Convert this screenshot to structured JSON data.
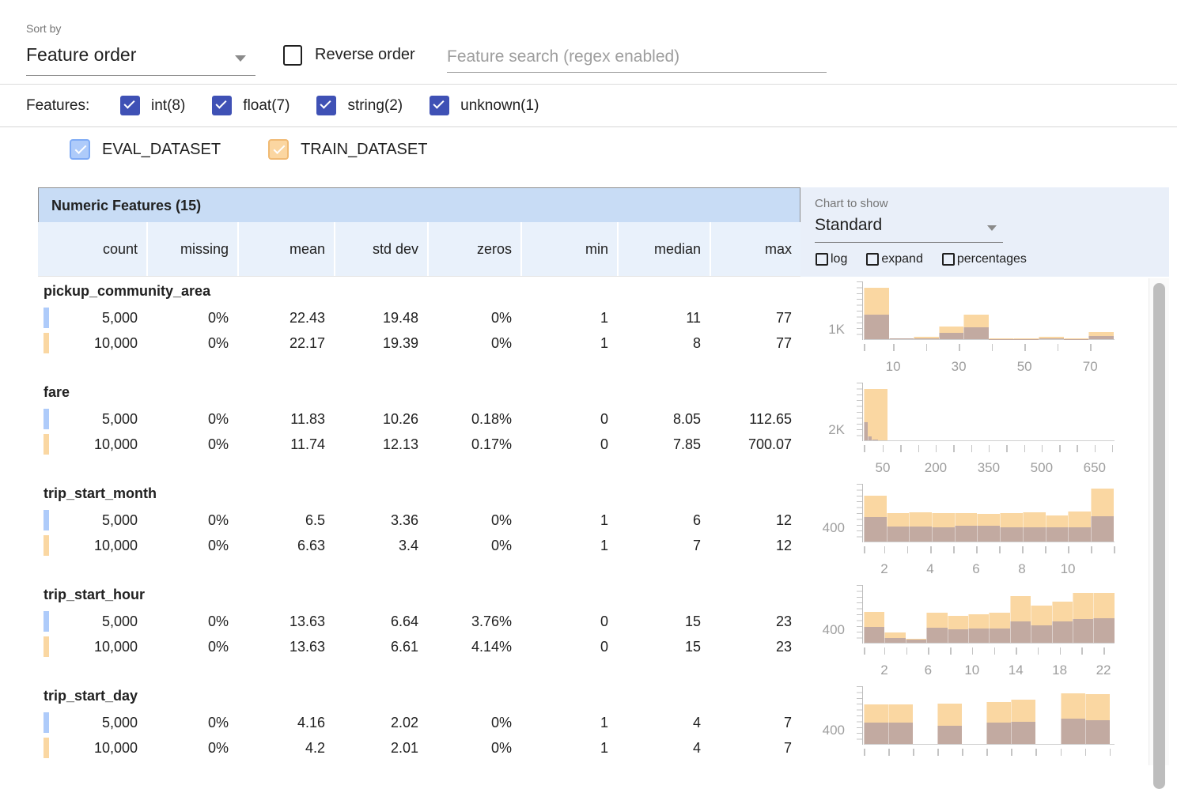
{
  "colors": {
    "accent_indigo": "#3f51b5",
    "table_title_bg": "#c8dcf5",
    "table_header_bg": "#e9f1fb",
    "chart_panel_bg": "#e9eff9",
    "train_bar": "#fad7a2",
    "overlap_bar": "#c2aaa1",
    "eval_swatch": "#aecbfa",
    "train_swatch": "#fad7a2"
  },
  "sort": {
    "label": "Sort by",
    "value": "Feature order"
  },
  "reverse": {
    "label": "Reverse order",
    "checked": false
  },
  "search": {
    "placeholder": "Feature search (regex enabled)",
    "value": ""
  },
  "features_filter": {
    "label": "Features:",
    "items": [
      {
        "label": "int(8)",
        "checked": true
      },
      {
        "label": "float(7)",
        "checked": true
      },
      {
        "label": "string(2)",
        "checked": true
      },
      {
        "label": "unknown(1)",
        "checked": true
      }
    ]
  },
  "datasets": [
    {
      "name": "EVAL_DATASET",
      "fill": "#aecbfa",
      "border": "#7fabf5",
      "checked": true
    },
    {
      "name": "TRAIN_DATASET",
      "fill": "#fbd6a1",
      "border": "#f0ba74",
      "checked": true
    }
  ],
  "table": {
    "title": "Numeric Features (15)",
    "columns": [
      "count",
      "missing",
      "mean",
      "std dev",
      "zeros",
      "min",
      "median",
      "max"
    ],
    "rows": [
      {
        "feature": "pickup_community_area",
        "eval": [
          "5,000",
          "0%",
          "22.43",
          "19.48",
          "0%",
          "1",
          "11",
          "77"
        ],
        "train": [
          "10,000",
          "0%",
          "22.17",
          "19.39",
          "0%",
          "1",
          "8",
          "77"
        ]
      },
      {
        "feature": "fare",
        "eval": [
          "5,000",
          "0%",
          "11.83",
          "10.26",
          "0.18%",
          "0",
          "8.05",
          "112.65"
        ],
        "train": [
          "10,000",
          "0%",
          "11.74",
          "12.13",
          "0.17%",
          "0",
          "7.85",
          "700.07"
        ]
      },
      {
        "feature": "trip_start_month",
        "eval": [
          "5,000",
          "0%",
          "6.5",
          "3.36",
          "0%",
          "1",
          "6",
          "12"
        ],
        "train": [
          "10,000",
          "0%",
          "6.63",
          "3.4",
          "0%",
          "1",
          "7",
          "12"
        ]
      },
      {
        "feature": "trip_start_hour",
        "eval": [
          "5,000",
          "0%",
          "13.63",
          "6.64",
          "3.76%",
          "0",
          "15",
          "23"
        ],
        "train": [
          "10,000",
          "0%",
          "13.63",
          "6.61",
          "4.14%",
          "0",
          "15",
          "23"
        ]
      },
      {
        "feature": "trip_start_day",
        "eval": [
          "5,000",
          "0%",
          "4.16",
          "2.02",
          "0%",
          "1",
          "4",
          "7"
        ],
        "train": [
          "10,000",
          "0%",
          "4.2",
          "2.01",
          "0%",
          "1",
          "4",
          "7"
        ]
      }
    ]
  },
  "chart_panel": {
    "label": "Chart to show",
    "value": "Standard",
    "toggles": [
      {
        "label": "log",
        "checked": false
      },
      {
        "label": "expand",
        "checked": false
      },
      {
        "label": "percentages",
        "checked": false
      }
    ]
  },
  "chart_data": [
    {
      "type": "histogram",
      "feature": "pickup_community_area",
      "series_names": [
        "TRAIN_DATASET",
        "EVAL_DATASET"
      ],
      "y_label": "1K",
      "y_label_frac": 0.18,
      "x_range": [
        1,
        77
      ],
      "x_ticks": [
        {
          "pos": 0.0,
          "label": ""
        },
        {
          "pos": 0.117,
          "label": "10"
        },
        {
          "pos": 0.248,
          "label": ""
        },
        {
          "pos": 0.379,
          "label": "30"
        },
        {
          "pos": 0.51,
          "label": ""
        },
        {
          "pos": 0.641,
          "label": "50"
        },
        {
          "pos": 0.772,
          "label": ""
        },
        {
          "pos": 0.903,
          "label": "70"
        }
      ],
      "bars": [
        {
          "x": 0.0,
          "w": 0.0996,
          "train": 0.88,
          "eval": 0.42
        },
        {
          "x": 0.0996,
          "w": 0.0996,
          "train": 0.015,
          "eval": 0.008
        },
        {
          "x": 0.1992,
          "w": 0.0996,
          "train": 0.04,
          "eval": 0.012
        },
        {
          "x": 0.2988,
          "w": 0.0996,
          "train": 0.22,
          "eval": 0.11
        },
        {
          "x": 0.3984,
          "w": 0.0996,
          "train": 0.42,
          "eval": 0.2
        },
        {
          "x": 0.498,
          "w": 0.0996,
          "train": 0.012,
          "eval": 0.006
        },
        {
          "x": 0.5976,
          "w": 0.0996,
          "train": 0.012,
          "eval": 0.006
        },
        {
          "x": 0.6972,
          "w": 0.0996,
          "train": 0.04,
          "eval": 0.012
        },
        {
          "x": 0.7968,
          "w": 0.0996,
          "train": 0.015,
          "eval": 0.006
        },
        {
          "x": 0.8964,
          "w": 0.0996,
          "train": 0.12,
          "eval": 0.05
        }
      ]
    },
    {
      "type": "histogram",
      "feature": "fare",
      "series_names": [
        "TRAIN_DATASET",
        "EVAL_DATASET"
      ],
      "y_label": "2K",
      "y_label_frac": 0.19,
      "x_range": [
        0,
        700
      ],
      "x_ticks": [
        {
          "pos": 0.0,
          "label": ""
        },
        {
          "pos": 0.0757,
          "label": "50"
        },
        {
          "pos": 0.1461,
          "label": ""
        },
        {
          "pos": 0.2165,
          "label": ""
        },
        {
          "pos": 0.2869,
          "label": "200"
        },
        {
          "pos": 0.3573,
          "label": ""
        },
        {
          "pos": 0.4277,
          "label": ""
        },
        {
          "pos": 0.4981,
          "label": "350"
        },
        {
          "pos": 0.5685,
          "label": ""
        },
        {
          "pos": 0.6389,
          "label": ""
        },
        {
          "pos": 0.7093,
          "label": "500"
        },
        {
          "pos": 0.7797,
          "label": ""
        },
        {
          "pos": 0.8501,
          "label": ""
        },
        {
          "pos": 0.9205,
          "label": "650"
        },
        {
          "pos": 0.99,
          "label": ""
        }
      ],
      "bars": [
        {
          "x": 0.0,
          "w": 0.095,
          "train": 0.875,
          "eval": 0
        },
        {
          "x": 0.0,
          "w": 0.016,
          "train": 0,
          "eval": 0.31
        },
        {
          "x": 0.016,
          "w": 0.016,
          "train": 0,
          "eval": 0.07
        },
        {
          "x": 0.032,
          "w": 0.026,
          "train": 0,
          "eval": 0.02
        }
      ]
    },
    {
      "type": "histogram",
      "feature": "trip_start_month",
      "series_names": [
        "TRAIN_DATASET",
        "EVAL_DATASET"
      ],
      "y_label": "400",
      "y_label_frac": 0.24,
      "x_range": [
        1,
        12
      ],
      "x_ticks": [
        {
          "pos": 0.0,
          "label": ""
        },
        {
          "pos": 0.082,
          "label": "2"
        },
        {
          "pos": 0.1735,
          "label": ""
        },
        {
          "pos": 0.265,
          "label": "4"
        },
        {
          "pos": 0.3565,
          "label": ""
        },
        {
          "pos": 0.448,
          "label": "6"
        },
        {
          "pos": 0.5395,
          "label": ""
        },
        {
          "pos": 0.631,
          "label": "8"
        },
        {
          "pos": 0.7225,
          "label": ""
        },
        {
          "pos": 0.814,
          "label": "10"
        },
        {
          "pos": 0.9055,
          "label": ""
        },
        {
          "pos": 0.997,
          "label": ""
        }
      ],
      "bars": [
        {
          "x": 0.0,
          "w": 0.0905,
          "train": 0.79,
          "eval": 0.42
        },
        {
          "x": 0.0905,
          "w": 0.0905,
          "train": 0.49,
          "eval": 0.26
        },
        {
          "x": 0.181,
          "w": 0.0905,
          "train": 0.5,
          "eval": 0.26
        },
        {
          "x": 0.2715,
          "w": 0.0905,
          "train": 0.48,
          "eval": 0.25
        },
        {
          "x": 0.362,
          "w": 0.0905,
          "train": 0.48,
          "eval": 0.265
        },
        {
          "x": 0.4525,
          "w": 0.0905,
          "train": 0.47,
          "eval": 0.265
        },
        {
          "x": 0.543,
          "w": 0.0905,
          "train": 0.48,
          "eval": 0.24
        },
        {
          "x": 0.6335,
          "w": 0.0905,
          "train": 0.5,
          "eval": 0.24
        },
        {
          "x": 0.724,
          "w": 0.0905,
          "train": 0.45,
          "eval": 0.25
        },
        {
          "x": 0.8145,
          "w": 0.0905,
          "train": 0.51,
          "eval": 0.25
        },
        {
          "x": 0.905,
          "w": 0.0905,
          "train": 0.905,
          "eval": 0.43
        }
      ]
    },
    {
      "type": "histogram",
      "feature": "trip_start_hour",
      "series_names": [
        "TRAIN_DATASET",
        "EVAL_DATASET"
      ],
      "y_label": "400",
      "y_label_frac": 0.23,
      "x_range": [
        0,
        23
      ],
      "x_ticks": [
        {
          "pos": 0.0,
          "label": ""
        },
        {
          "pos": 0.082,
          "label": "2"
        },
        {
          "pos": 0.1694,
          "label": ""
        },
        {
          "pos": 0.2568,
          "label": "6"
        },
        {
          "pos": 0.3442,
          "label": ""
        },
        {
          "pos": 0.4316,
          "label": "10"
        },
        {
          "pos": 0.519,
          "label": ""
        },
        {
          "pos": 0.6064,
          "label": "14"
        },
        {
          "pos": 0.6938,
          "label": ""
        },
        {
          "pos": 0.7812,
          "label": "18"
        },
        {
          "pos": 0.8686,
          "label": ""
        },
        {
          "pos": 0.956,
          "label": "22"
        }
      ],
      "bars": [
        {
          "x": 0.0,
          "w": 0.0833,
          "train": 0.53,
          "eval": 0.27
        },
        {
          "x": 0.0833,
          "w": 0.0833,
          "train": 0.17,
          "eval": 0.08
        },
        {
          "x": 0.1666,
          "w": 0.0833,
          "train": 0.07,
          "eval": 0.05
        },
        {
          "x": 0.2499,
          "w": 0.0833,
          "train": 0.51,
          "eval": 0.26
        },
        {
          "x": 0.3332,
          "w": 0.0833,
          "train": 0.46,
          "eval": 0.235
        },
        {
          "x": 0.4165,
          "w": 0.0833,
          "train": 0.49,
          "eval": 0.24
        },
        {
          "x": 0.4998,
          "w": 0.0833,
          "train": 0.52,
          "eval": 0.25
        },
        {
          "x": 0.5831,
          "w": 0.0833,
          "train": 0.8,
          "eval": 0.36
        },
        {
          "x": 0.6664,
          "w": 0.0833,
          "train": 0.63,
          "eval": 0.3
        },
        {
          "x": 0.7497,
          "w": 0.0833,
          "train": 0.7,
          "eval": 0.37
        },
        {
          "x": 0.833,
          "w": 0.0833,
          "train": 0.85,
          "eval": 0.4
        },
        {
          "x": 0.9163,
          "w": 0.0837,
          "train": 0.85,
          "eval": 0.42
        }
      ]
    },
    {
      "type": "histogram",
      "feature": "trip_start_day",
      "series_names": [
        "TRAIN_DATASET",
        "EVAL_DATASET"
      ],
      "y_label": "400",
      "y_label_frac": 0.24,
      "x_range": [
        1,
        7
      ],
      "x_ticks": [
        {
          "pos": 0.0,
          "label": ""
        },
        {
          "pos": 0.098,
          "label": ""
        },
        {
          "pos": 0.196,
          "label": ""
        },
        {
          "pos": 0.294,
          "label": ""
        },
        {
          "pos": 0.392,
          "label": ""
        },
        {
          "pos": 0.49,
          "label": ""
        },
        {
          "pos": 0.588,
          "label": ""
        },
        {
          "pos": 0.686,
          "label": ""
        },
        {
          "pos": 0.784,
          "label": ""
        },
        {
          "pos": 0.882,
          "label": ""
        },
        {
          "pos": 0.98,
          "label": ""
        }
      ],
      "bars": [
        {
          "x": 0.0,
          "w": 0.098,
          "train": 0.67,
          "eval": 0.36
        },
        {
          "x": 0.098,
          "w": 0.098,
          "train": 0.67,
          "eval": 0.36
        },
        {
          "x": 0.294,
          "w": 0.098,
          "train": 0.69,
          "eval": 0.31
        },
        {
          "x": 0.49,
          "w": 0.098,
          "train": 0.71,
          "eval": 0.365
        },
        {
          "x": 0.588,
          "w": 0.098,
          "train": 0.76,
          "eval": 0.38
        },
        {
          "x": 0.784,
          "w": 0.098,
          "train": 0.86,
          "eval": 0.43
        },
        {
          "x": 0.882,
          "w": 0.098,
          "train": 0.855,
          "eval": 0.41
        }
      ]
    }
  ]
}
